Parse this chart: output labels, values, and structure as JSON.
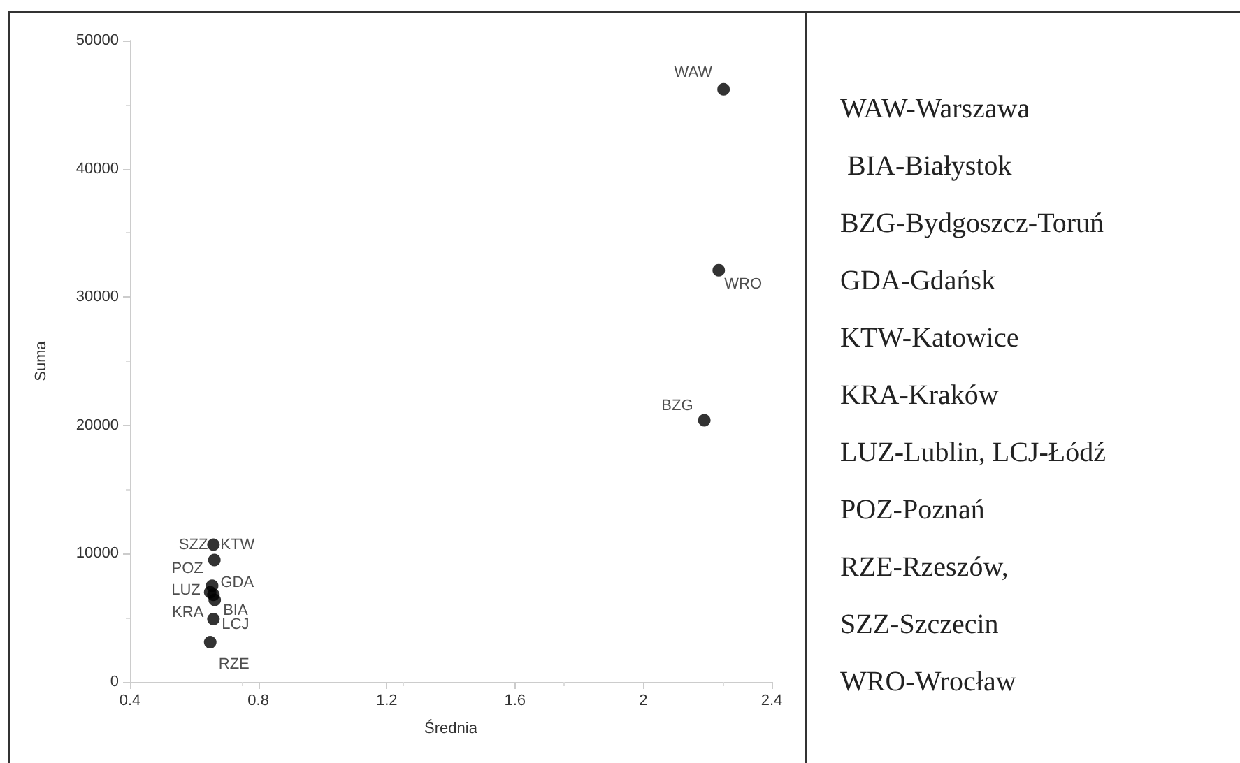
{
  "chart_data": {
    "type": "scatter",
    "xlabel": "Średnia",
    "ylabel": "Suma",
    "x": [
      2.25,
      2.235,
      2.19,
      0.66,
      0.663,
      0.656,
      0.65,
      0.66,
      0.664,
      0.66,
      0.65
    ],
    "series": [
      {
        "color": "#000000",
        "values": [
          46200,
          32100,
          20400,
          10700,
          9500,
          7500,
          7000,
          6800,
          6400,
          4900,
          3100
        ]
      }
    ],
    "xlim": [
      0.4,
      2.4
    ],
    "xticks": [
      0.4,
      0.8,
      1.2,
      1.6,
      2,
      2.4
    ],
    "ylim": [
      0,
      50000
    ],
    "yticks": [
      0,
      10000,
      20000,
      30000,
      40000,
      50000
    ],
    "grid": false,
    "marker": "circle",
    "annotations": [
      {
        "text": "WAW",
        "x": 2.25,
        "y": 46200
      },
      {
        "text": "WRO",
        "x": 2.235,
        "y": 32100
      },
      {
        "text": "BZG",
        "x": 2.19,
        "y": 20400
      },
      {
        "text": "SZZ",
        "x": 0.66,
        "y": 10700
      },
      {
        "text": "KTW",
        "x": 0.66,
        "y": 10700
      },
      {
        "text": "POZ",
        "x": 0.663,
        "y": 9500
      },
      {
        "text": "GDA",
        "x": 0.656,
        "y": 7500
      },
      {
        "text": "LUZ",
        "x": 0.65,
        "y": 7000
      },
      {
        "text": "KRA",
        "x": 0.66,
        "y": 6800
      },
      {
        "text": "BIA",
        "x": 0.664,
        "y": 6400
      },
      {
        "text": "LCJ",
        "x": 0.66,
        "y": 4900
      },
      {
        "text": "RZE",
        "x": 0.65,
        "y": 3100
      },
      "WAW-Warszawa",
      " BIA-Białystok",
      "BZG-Bydgoszcz-Toruń",
      "GDA-Gdańsk",
      "KTW-Katowice",
      "KRA-Kraków",
      "LUZ-Lublin, LCJ-Łódź",
      "POZ-Poznań",
      "RZE-Rzeszów,",
      "SZZ-Szczecin",
      "WRO-Wrocław"
    ]
  }
}
